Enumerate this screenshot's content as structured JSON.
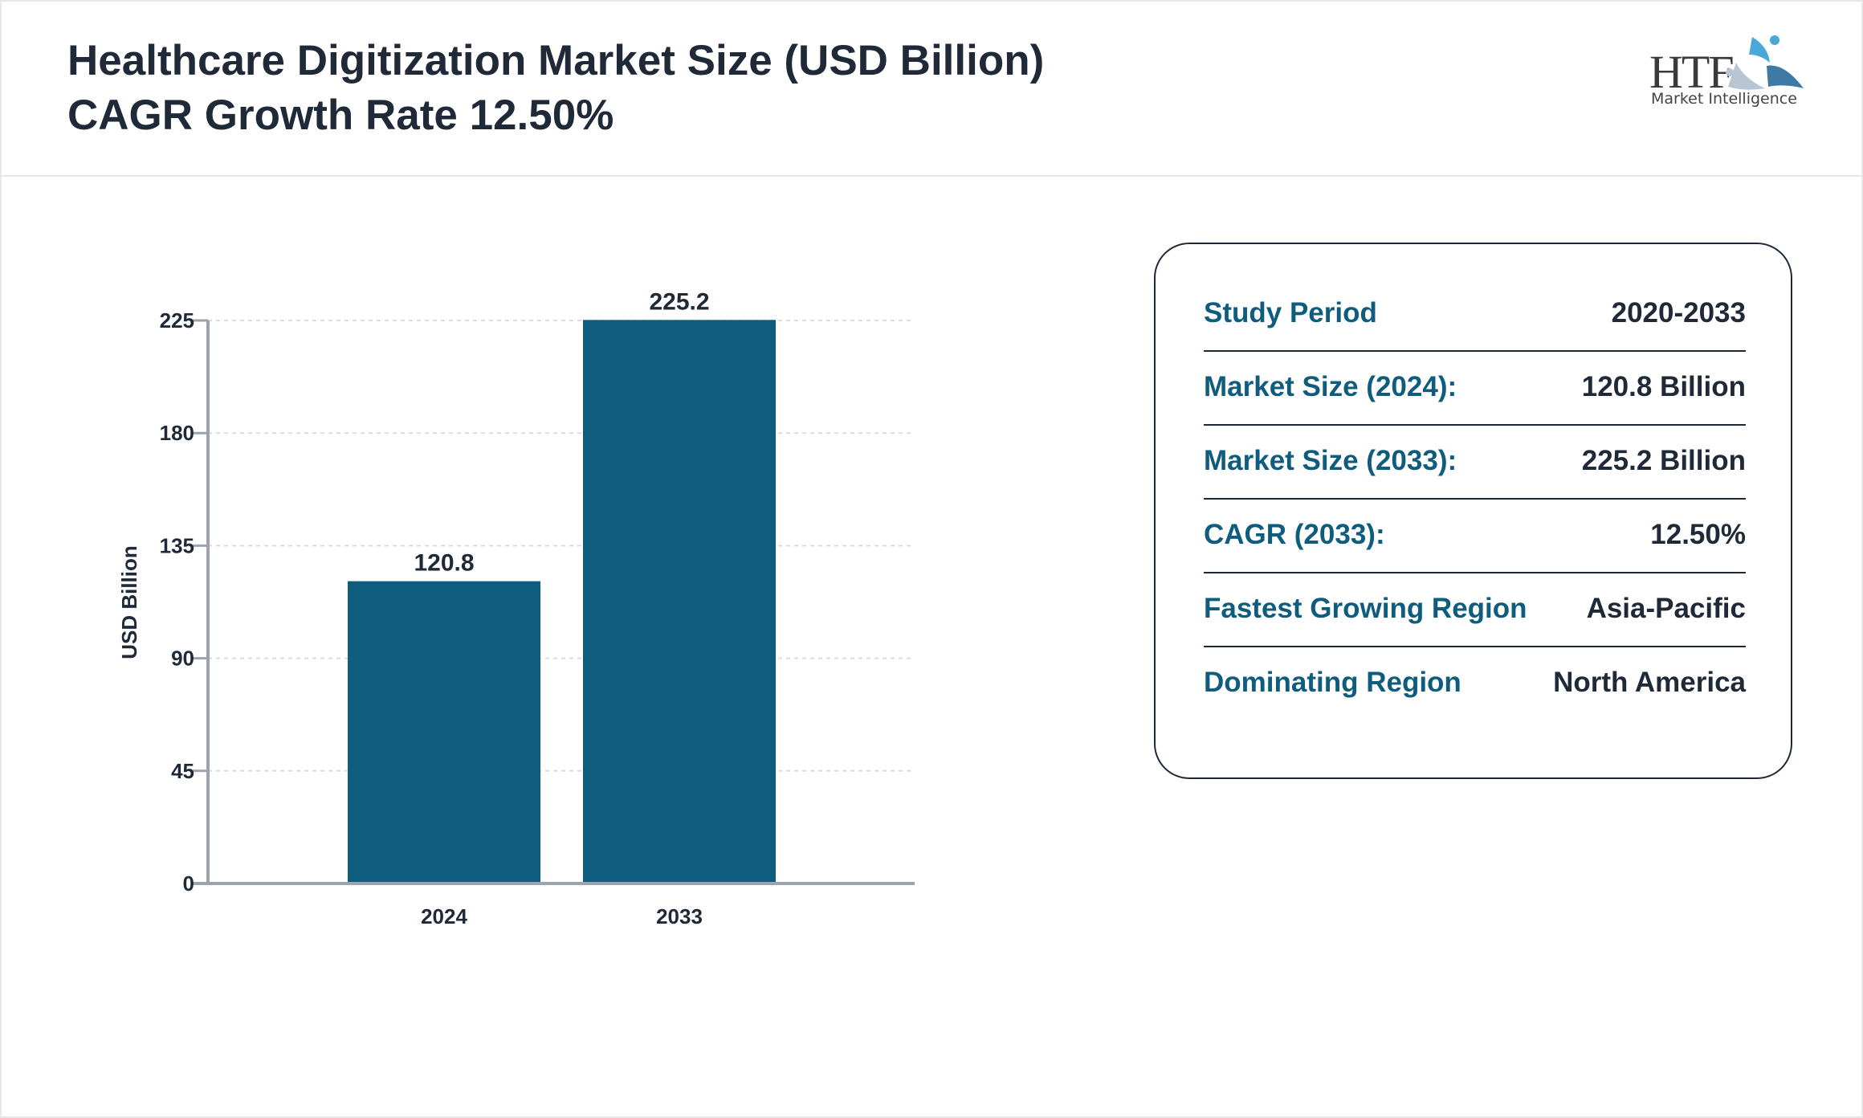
{
  "header": {
    "title_line1": "Healthcare Digitization Market Size (USD Billion)",
    "title_line2": "CAGR Growth Rate 12.50%",
    "logo_main": "HTF",
    "logo_sub": "Market Intelligence"
  },
  "chart_data": {
    "type": "bar",
    "categories": [
      "2024",
      "2033"
    ],
    "values": [
      120.8,
      225.2
    ],
    "data_labels": [
      "120.8",
      "225.2"
    ],
    "title": "",
    "xlabel": "",
    "ylabel": "USD Billion",
    "ylim": [
      0,
      225
    ],
    "yticks": [
      0,
      45,
      90,
      135,
      180,
      225
    ],
    "grid": true,
    "bar_color": "#0e5c7e"
  },
  "info": {
    "rows": [
      {
        "label": "Study Period",
        "value": "2020-2033"
      },
      {
        "label": "Market Size (2024):",
        "value": "120.8 Billion"
      },
      {
        "label": "Market Size (2033):",
        "value": "225.2 Billion"
      },
      {
        "label": "CAGR (2033):",
        "value": "12.50%"
      },
      {
        "label": "Fastest Growing Region",
        "value": "Asia-Pacific"
      },
      {
        "label": "Dominating Region",
        "value": "North America"
      }
    ]
  }
}
